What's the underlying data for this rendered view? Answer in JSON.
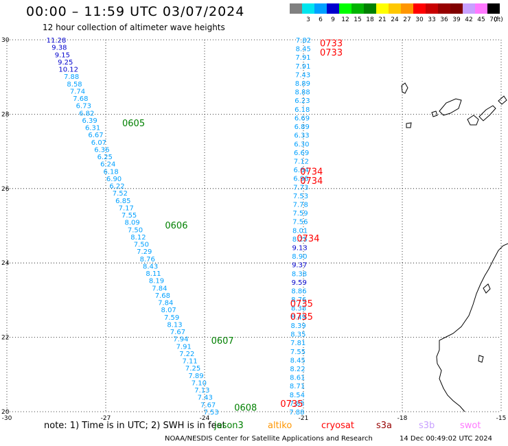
{
  "title": "00:00 – 11:59 UTC 03/07/2024",
  "subtitle": "12 hour collection of altimeter wave heights",
  "legend": {
    "unit": "(ft)",
    "bins": [
      {
        "label": "3",
        "color": "#808080"
      },
      {
        "label": "6",
        "color": "#00e5ee"
      },
      {
        "label": "9",
        "color": "#00a0ff"
      },
      {
        "label": "12",
        "color": "#0000cd"
      },
      {
        "label": "15",
        "color": "#00ff00"
      },
      {
        "label": "18",
        "color": "#00b400"
      },
      {
        "label": "21",
        "color": "#008000"
      },
      {
        "label": "24",
        "color": "#ffff00"
      },
      {
        "label": "27",
        "color": "#ffc800"
      },
      {
        "label": "30",
        "color": "#ff9600"
      },
      {
        "label": "33",
        "color": "#ff0000"
      },
      {
        "label": "36",
        "color": "#c80000"
      },
      {
        "label": "39",
        "color": "#960000"
      },
      {
        "label": "42",
        "color": "#800000"
      },
      {
        "label": "45",
        "color": "#c8a0ff"
      },
      {
        "label": "70",
        "color": "#ff78ff"
      },
      {
        "label": "",
        "color": "#000000"
      }
    ]
  },
  "axes": {
    "lon_ticks": [
      "-30",
      "-27",
      "-24",
      "-21",
      "-18",
      "-15"
    ],
    "lat_ticks": [
      "30",
      "28",
      "26",
      "24",
      "22",
      "20"
    ],
    "lon_range": [
      -30,
      -15
    ],
    "lat_range": [
      20,
      30
    ]
  },
  "tracks": [
    {
      "id": "west",
      "start": [
        -28.5,
        30.0
      ],
      "end": [
        -23.8,
        20.0
      ],
      "values": [
        "11.28",
        "9.38",
        "9.15",
        "9.25",
        "10.12",
        "7.88",
        "8.58",
        "7.74",
        "7.68",
        "6.73",
        "6.82",
        "6.39",
        "6.31",
        "6.67",
        "6.07",
        "6.36",
        "6.25",
        "6.24",
        "6.18",
        "6.90",
        "6.22",
        "7.52",
        "6.85",
        "7.17",
        "7.55",
        "8.09",
        "7.50",
        "8.12",
        "7.50",
        "7.29",
        "8.76",
        "8.43",
        "8.11",
        "8.19",
        "7.84",
        "7.68",
        "7.84",
        "8.07",
        "7.59",
        "8.13",
        "7.67",
        "7.94",
        "7.91",
        "7.22",
        "7.11",
        "7.25",
        "7.89",
        "7.10",
        "7.13",
        "7.43",
        "7.67",
        "7.53"
      ],
      "colors": [
        "#0000cd",
        "#0000cd",
        "#0000cd",
        "#0000cd",
        "#0000cd"
      ]
    },
    {
      "id": "east",
      "start": [
        -21.0,
        30.0
      ],
      "end": [
        -21.2,
        20.0
      ],
      "values": [
        "7.82",
        "8.45",
        "7.91",
        "7.91",
        "7.43",
        "8.89",
        "8.88",
        "6.23",
        "6.18",
        "6.69",
        "6.89",
        "6.33",
        "6.30",
        "6.69",
        "7.12",
        "6.64",
        "6.96",
        "7.73",
        "7.53",
        "7.78",
        "7.59",
        "7.56",
        "8.01",
        "8.25",
        "9.13",
        "8.90",
        "9.37",
        "8.38",
        "9.59",
        "8.86",
        "8.76",
        "8.38",
        "8.49",
        "8.39",
        "8.35",
        "7.81",
        "7.55",
        "8.45",
        "8.22",
        "8.61",
        "8.71",
        "8.54",
        "7.85",
        "7.88"
      ],
      "dark": [
        "9.13",
        "9.37",
        "9.59"
      ]
    }
  ],
  "pass_labels": [
    {
      "text": "0733",
      "color": "#ff0000",
      "lon": -20.5,
      "lat": 29.9
    },
    {
      "text": "0733",
      "color": "#ff0000",
      "lon": -20.5,
      "lat": 29.65
    },
    {
      "text": "0605",
      "color": "#008000",
      "lon": -26.5,
      "lat": 27.75
    },
    {
      "text": "0734",
      "color": "#ff0000",
      "lon": -21.1,
      "lat": 26.45
    },
    {
      "text": "0734",
      "color": "#ff0000",
      "lon": -21.1,
      "lat": 26.2
    },
    {
      "text": "0606",
      "color": "#008000",
      "lon": -25.2,
      "lat": 25.0
    },
    {
      "text": "0734",
      "color": "#ff0000",
      "lon": -21.2,
      "lat": 24.65
    },
    {
      "text": "0735",
      "color": "#ff0000",
      "lon": -21.4,
      "lat": 22.9
    },
    {
      "text": "0735",
      "color": "#ff0000",
      "lon": -21.4,
      "lat": 22.55
    },
    {
      "text": "0607",
      "color": "#008000",
      "lon": -23.8,
      "lat": 21.9
    },
    {
      "text": "0735",
      "color": "#ff0000",
      "lon": -21.7,
      "lat": 20.2
    },
    {
      "text": "0608",
      "color": "#008000",
      "lon": -23.1,
      "lat": 20.1
    }
  ],
  "note": "note: 1) Time is in UTC; 2) SWH is in feet",
  "satellites": [
    {
      "name": "jason3",
      "color": "#008000"
    },
    {
      "name": "altiko",
      "color": "#ff9600"
    },
    {
      "name": "cryosat",
      "color": "#ff0000"
    },
    {
      "name": "s3a",
      "color": "#960000"
    },
    {
      "name": "s3b",
      "color": "#c8a0ff"
    },
    {
      "name": "swot",
      "color": "#ff78ff"
    }
  ],
  "credit": "NOAA/NESDIS Center for Satellite Applications and Research",
  "timestamp": "14 Dec 00:49:02 UTC 2024"
}
